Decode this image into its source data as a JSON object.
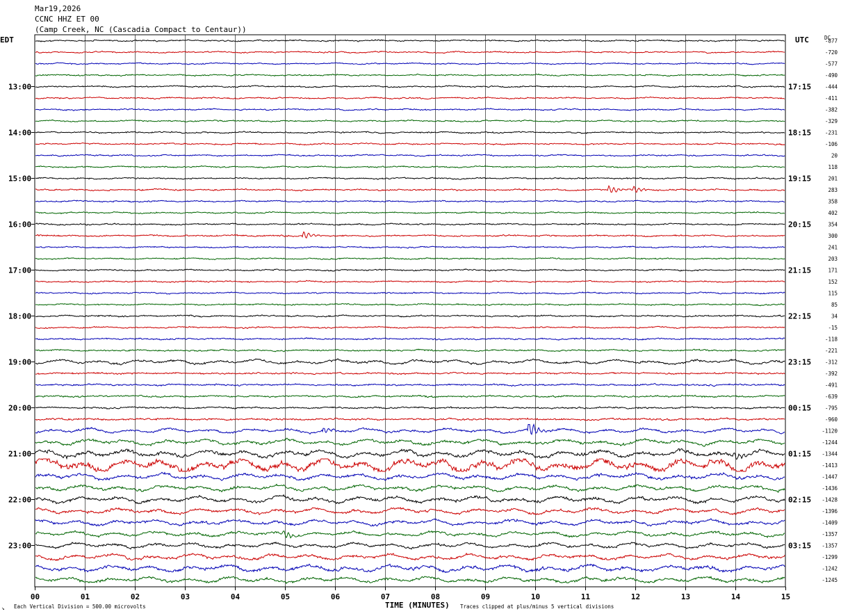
{
  "header": {
    "date": "Mar19,2026",
    "station": "CCNC HHZ ET 00",
    "location": "(Camp Creek, NC (Cascadia Compact to Centaur))"
  },
  "chart_data": {
    "type": "line",
    "left_axis_title": "EDT",
    "right_axis_title": "UTC",
    "dc_title": "DC",
    "xlabel": "TIME (MINUTES)",
    "x_ticks": [
      "00",
      "01",
      "02",
      "03",
      "04",
      "05",
      "06",
      "07",
      "08",
      "09",
      "10",
      "11",
      "12",
      "13",
      "14",
      "15"
    ],
    "xlim": [
      0,
      15
    ],
    "left_time_labels": [
      {
        "row": 4,
        "label": "13:00"
      },
      {
        "row": 8,
        "label": "14:00"
      },
      {
        "row": 12,
        "label": "15:00"
      },
      {
        "row": 16,
        "label": "16:00"
      },
      {
        "row": 20,
        "label": "17:00"
      },
      {
        "row": 24,
        "label": "18:00"
      },
      {
        "row": 28,
        "label": "19:00"
      },
      {
        "row": 32,
        "label": "20:00"
      },
      {
        "row": 36,
        "label": "21:00"
      },
      {
        "row": 40,
        "label": "22:00"
      },
      {
        "row": 44,
        "label": "23:00"
      }
    ],
    "right_time_labels": [
      {
        "row": 4,
        "label": "17:15"
      },
      {
        "row": 8,
        "label": "18:15"
      },
      {
        "row": 12,
        "label": "19:15"
      },
      {
        "row": 16,
        "label": "20:15"
      },
      {
        "row": 20,
        "label": "21:15"
      },
      {
        "row": 24,
        "label": "22:15"
      },
      {
        "row": 28,
        "label": "23:15"
      },
      {
        "row": 32,
        "label": "00:15"
      },
      {
        "row": 36,
        "label": "01:15"
      },
      {
        "row": 40,
        "label": "02:15"
      },
      {
        "row": 44,
        "label": "03:15"
      }
    ],
    "dc_values": [
      "-877",
      "-720",
      "-577",
      "-490",
      "-444",
      "-411",
      "-382",
      "-329",
      "-231",
      "-106",
      "20",
      "118",
      "201",
      "283",
      "358",
      "402",
      "354",
      "300",
      "241",
      "203",
      "171",
      "152",
      "115",
      "85",
      "34",
      "-15",
      "-118",
      "-221",
      "-312",
      "-392",
      "-491",
      "-639",
      "-795",
      "-960",
      "-1120",
      "-1244",
      "-1344",
      "-1413",
      "-1447",
      "-1436",
      "-1428",
      "-1396",
      "-1409",
      "-1357",
      "-1357",
      "-1299",
      "-1242",
      "-1245"
    ],
    "trace_colors": [
      "#000000",
      "#cc0000",
      "#0000b4",
      "#006400"
    ],
    "trace_amplitude": [
      1.0,
      1.0,
      0.9,
      1.0,
      1.0,
      1.0,
      1.0,
      1.0,
      1.0,
      1.0,
      1.0,
      1.0,
      1.0,
      1.1,
      1.0,
      1.0,
      1.0,
      1.1,
      1.0,
      1.0,
      1.0,
      1.0,
      1.0,
      1.0,
      1.1,
      1.0,
      1.1,
      1.1,
      1.6,
      1.2,
      1.2,
      1.2,
      1.2,
      1.4,
      1.6,
      2.0,
      2.6,
      4.5,
      2.2,
      2.0,
      2.3,
      2.0,
      2.0,
      1.8,
      1.8,
      2.0,
      2.4,
      2.0
    ],
    "events": [
      {
        "row": 13,
        "minute": 11.5,
        "amp": 5
      },
      {
        "row": 13,
        "minute": 12.0,
        "amp": 4
      },
      {
        "row": 17,
        "minute": 5.4,
        "amp": 5
      },
      {
        "row": 34,
        "minute": 9.9,
        "amp": 10
      },
      {
        "row": 34,
        "minute": 5.8,
        "amp": 4
      },
      {
        "row": 43,
        "minute": 5.0,
        "amp": 5
      },
      {
        "row": 36,
        "minute": 14.0,
        "amp": 5
      }
    ]
  },
  "footer": {
    "vertical_division": "Each Vertical Division =  500.00 microvolts",
    "clip_note": "Traces clipped at plus/minus 5 vertical divisions",
    "logo_mark": "↘"
  }
}
